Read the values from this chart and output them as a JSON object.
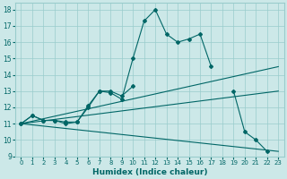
{
  "xlabel": "Humidex (Indice chaleur)",
  "bg_color": "#cce8e8",
  "grid_color": "#99cccc",
  "line_color": "#006666",
  "xlim": [
    -0.5,
    23.5
  ],
  "ylim": [
    9,
    18.4
  ],
  "xticks": [
    0,
    1,
    2,
    3,
    4,
    5,
    6,
    7,
    8,
    9,
    10,
    11,
    12,
    13,
    14,
    15,
    16,
    17,
    18,
    19,
    20,
    21,
    22,
    23
  ],
  "yticks": [
    9,
    10,
    11,
    12,
    13,
    14,
    15,
    16,
    17,
    18
  ],
  "line1_x": [
    0,
    1,
    2,
    3,
    4,
    5,
    6,
    7,
    8,
    9,
    10,
    11,
    12,
    13,
    14,
    15,
    16,
    17
  ],
  "line1_y": [
    11.0,
    11.5,
    11.2,
    11.2,
    11.0,
    11.1,
    12.0,
    13.0,
    12.9,
    12.5,
    15.0,
    17.3,
    18.0,
    16.5,
    16.0,
    16.2,
    16.5,
    14.5
  ],
  "line2_x": [
    0,
    1,
    2,
    3,
    4,
    5,
    6,
    7,
    8,
    9,
    10,
    19,
    20,
    21,
    22
  ],
  "line2_y": [
    11.0,
    11.5,
    11.2,
    11.2,
    11.1,
    11.1,
    12.1,
    13.0,
    13.0,
    12.7,
    13.3,
    13.0,
    10.5,
    10.0,
    9.3
  ],
  "straight_lines": [
    {
      "x": [
        0,
        23
      ],
      "y": [
        11.0,
        14.5
      ]
    },
    {
      "x": [
        0,
        23
      ],
      "y": [
        11.0,
        13.0
      ]
    },
    {
      "x": [
        0,
        23
      ],
      "y": [
        11.0,
        9.3
      ]
    }
  ]
}
